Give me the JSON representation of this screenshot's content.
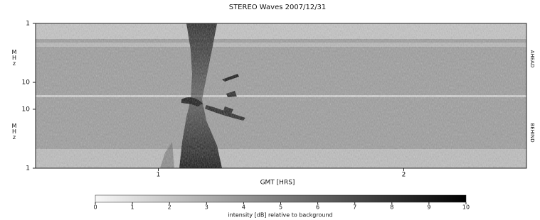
{
  "chart_data": {
    "type": "spectrogram",
    "title": "STEREO Waves 2007/12/31",
    "xlabel": "GMT [HRS]",
    "xlim": [
      0.5,
      2.5
    ],
    "xticks": [
      1,
      2
    ],
    "panels": [
      {
        "name": "AHEAD",
        "ylabel": "MHz",
        "ylim": [
          1,
          16
        ],
        "yticks": [
          1,
          10
        ],
        "log": true,
        "inverted": true
      },
      {
        "name": "BEHIND",
        "ylabel": "MHz",
        "ylim": [
          1,
          16
        ],
        "yticks": [
          1,
          10
        ],
        "log": true,
        "inverted": false
      }
    ],
    "colorbar": {
      "label": "intensity [dB] relative to background",
      "lim": [
        0,
        10
      ],
      "ticks": [
        0,
        1,
        2,
        3,
        4,
        5,
        6,
        7,
        8,
        9,
        10
      ],
      "colors": [
        "#f7f7f7",
        "#000000"
      ]
    }
  }
}
